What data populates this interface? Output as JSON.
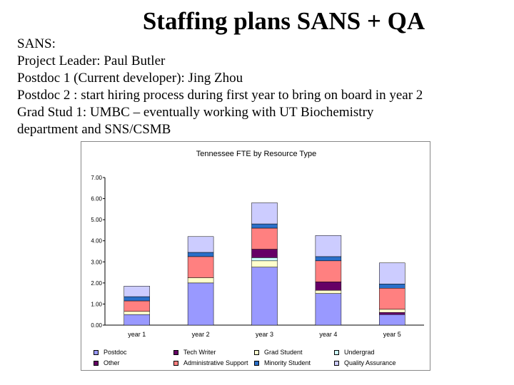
{
  "slide": {
    "title": "Staffing plans SANS + QA",
    "lines": [
      "SANS:",
      "Project Leader:  Paul Butler",
      "Postdoc 1 (Current developer): Jing Zhou",
      "Postdoc 2 : start hiring process during first year to bring on board in year 2",
      "Grad Stud 1: UMBC – eventually working with UT Biochemistry",
      "department and SNS/CSMB"
    ]
  },
  "chart_data": {
    "type": "bar",
    "stacked": true,
    "title": "Tennessee FTE by Resource Type",
    "xlabel": "",
    "ylabel": "",
    "ylim": [
      0,
      7
    ],
    "yticks": [
      "0.00",
      "1.00",
      "2.00",
      "3.00",
      "4.00",
      "5.00",
      "6.00",
      "7.00"
    ],
    "grid": false,
    "legend_position": "bottom",
    "categories": [
      "year 1",
      "year 2",
      "year 3",
      "year 4",
      "year 5"
    ],
    "series": [
      {
        "name": "Postdoc",
        "color": "#9999ff",
        "values": [
          0.5,
          2.0,
          2.75,
          1.5,
          0.5
        ]
      },
      {
        "name": "Other",
        "color": "#660066",
        "values": [
          0.0,
          0.0,
          0.0,
          0.0,
          0.1
        ]
      },
      {
        "name": "Tech Writer",
        "color": "#660066",
        "values": [
          0.0,
          0.0,
          0.0,
          0.0,
          0.0
        ]
      },
      {
        "name": "Administrative Support",
        "color": "#ff8080",
        "values": [
          0.0,
          0.0,
          0.0,
          0.0,
          0.0
        ]
      },
      {
        "name": "Grad Student",
        "color": "#ffffcc",
        "values": [
          0.15,
          0.25,
          0.3,
          0.15,
          0.15
        ]
      },
      {
        "name": "Minority Student",
        "color": "#2a6fc9",
        "values": [
          0.0,
          0.0,
          0.0,
          0.0,
          0.0
        ]
      },
      {
        "name": "Undergrad",
        "color": "#ccffff",
        "values": [
          0.0,
          0.0,
          0.15,
          0.0,
          0.0
        ]
      },
      {
        "name": "Other (purple)",
        "color": "#660066",
        "values": [
          0.0,
          0.0,
          0.4,
          0.4,
          0.0
        ]
      },
      {
        "name": "Administrative Support (red)",
        "color": "#ff8080",
        "values": [
          0.5,
          1.0,
          1.0,
          1.0,
          1.0
        ]
      },
      {
        "name": "Minority Student (blue)",
        "color": "#2a6fc9",
        "values": [
          0.2,
          0.2,
          0.2,
          0.2,
          0.2
        ]
      },
      {
        "name": "Quality Assurance",
        "color": "#ccccff",
        "values": [
          0.5,
          0.75,
          1.0,
          1.0,
          1.0
        ]
      }
    ],
    "legend": [
      {
        "label": "Postdoc",
        "color": "#9999ff"
      },
      {
        "label": "Tech Writer",
        "color": "#660066"
      },
      {
        "label": "Grad Student",
        "color": "#ffffcc"
      },
      {
        "label": "Undergrad",
        "color": "#ccffff"
      },
      {
        "label": "Other",
        "color": "#660066"
      },
      {
        "label": "Administrative Support",
        "color": "#ff8080"
      },
      {
        "label": "Minority Student",
        "color": "#2a6fc9"
      },
      {
        "label": "Quality Assurance",
        "color": "#ccccff"
      }
    ]
  }
}
